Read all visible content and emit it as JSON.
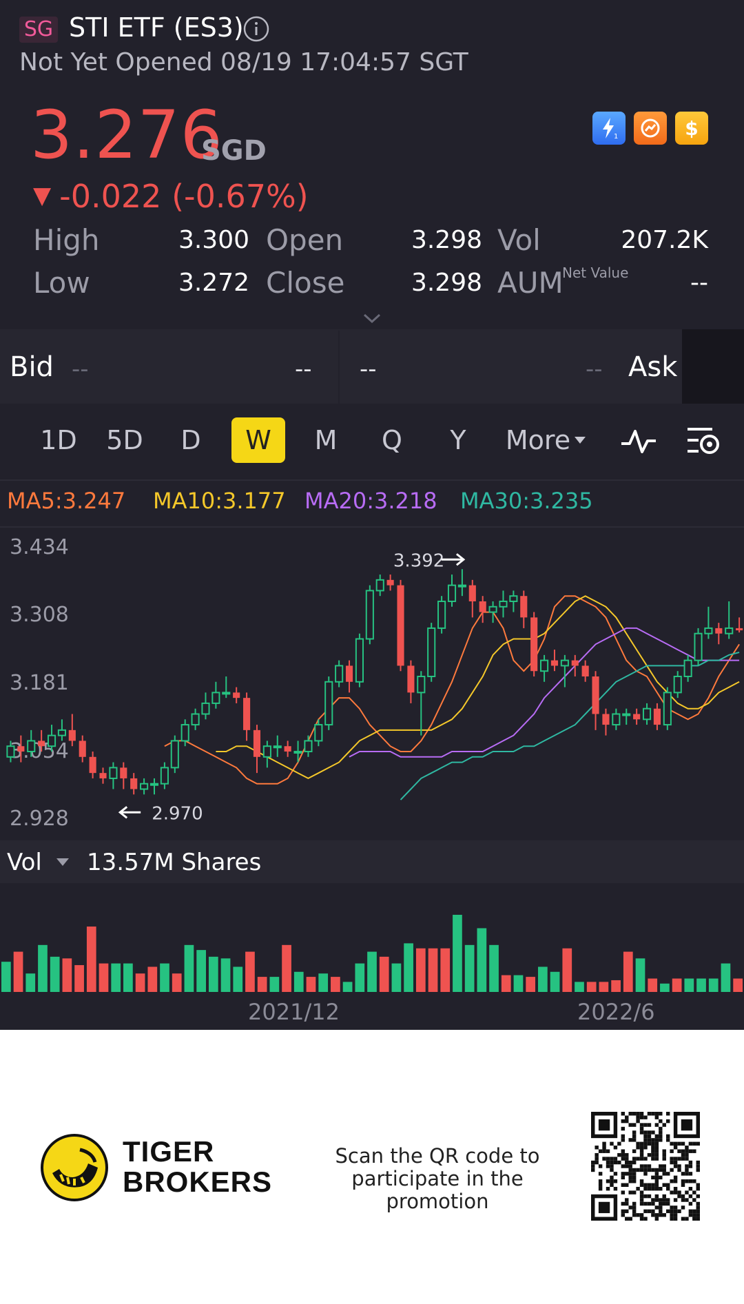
{
  "header": {
    "market_badge": "SG",
    "title": "STI ETF (ES3)",
    "status": "Not Yet Opened 08/19 17:04:57 SGT"
  },
  "quote": {
    "price": "3.276",
    "currency": "SGD",
    "change": "-0.022 (-0.67%)",
    "change_arrow": "▼",
    "color_down": "#ef5350",
    "color_up": "#26c281"
  },
  "stats": {
    "high_label": "High",
    "high": "3.300",
    "low_label": "Low",
    "low": "3.272",
    "open_label": "Open",
    "open": "3.298",
    "close_label": "Close",
    "close": "3.298",
    "vol_label": "Vol",
    "vol": "207.2K",
    "aum_label": "AUM",
    "aum_sup": "Net Value",
    "aum": "--"
  },
  "bidask": {
    "bid_label": "Bid",
    "bid_price": "--",
    "bid_size": "--",
    "ask_price": "--",
    "ask_size": "--",
    "ask_label": "Ask"
  },
  "periods": [
    "1D",
    "5D",
    "D",
    "W",
    "M",
    "Q",
    "Y"
  ],
  "active_period": "W",
  "more_label": "More",
  "ma": {
    "ma5": "MA5:3.247",
    "ma10": "MA10:3.177",
    "ma20": "MA20:3.218",
    "ma30": "MA30:3.235",
    "colors": {
      "ma5": "#ff7a3d",
      "ma10": "#f5c82a",
      "ma20": "#b86cf5",
      "ma30": "#2fb8a2"
    }
  },
  "chart_data": {
    "type": "candlestick",
    "y_ticks": [
      "3.434",
      "3.308",
      "3.181",
      "3.054",
      "2.928"
    ],
    "ylim": [
      2.928,
      3.434
    ],
    "max_annotation": "3.392",
    "min_annotation": "2.970",
    "x_labels": [
      "2021/12",
      "2022/6"
    ],
    "candles": [
      {
        "o": 3.04,
        "c": 3.06,
        "h": 3.07,
        "l": 3.03
      },
      {
        "o": 3.06,
        "c": 3.05,
        "h": 3.08,
        "l": 3.03
      },
      {
        "o": 3.05,
        "c": 3.07,
        "h": 3.09,
        "l": 3.04
      },
      {
        "o": 3.07,
        "c": 3.06,
        "h": 3.09,
        "l": 3.05
      },
      {
        "o": 3.06,
        "c": 3.08,
        "h": 3.1,
        "l": 3.05
      },
      {
        "o": 3.08,
        "c": 3.09,
        "h": 3.11,
        "l": 3.07
      },
      {
        "o": 3.09,
        "c": 3.07,
        "h": 3.12,
        "l": 3.06
      },
      {
        "o": 3.07,
        "c": 3.04,
        "h": 3.08,
        "l": 3.03
      },
      {
        "o": 3.04,
        "c": 3.01,
        "h": 3.05,
        "l": 3.0
      },
      {
        "o": 3.01,
        "c": 3.0,
        "h": 3.02,
        "l": 2.99
      },
      {
        "o": 3.0,
        "c": 3.02,
        "h": 3.03,
        "l": 2.98
      },
      {
        "o": 3.02,
        "c": 3.0,
        "h": 3.03,
        "l": 2.98
      },
      {
        "o": 3.0,
        "c": 2.98,
        "h": 3.01,
        "l": 2.97
      },
      {
        "o": 2.98,
        "c": 2.99,
        "h": 3.0,
        "l": 2.97
      },
      {
        "o": 2.99,
        "c": 2.99,
        "h": 3.0,
        "l": 2.97
      },
      {
        "o": 2.99,
        "c": 3.02,
        "h": 3.03,
        "l": 2.98
      },
      {
        "o": 3.02,
        "c": 3.07,
        "h": 3.08,
        "l": 3.01
      },
      {
        "o": 3.07,
        "c": 3.1,
        "h": 3.11,
        "l": 3.06
      },
      {
        "o": 3.1,
        "c": 3.12,
        "h": 3.13,
        "l": 3.09
      },
      {
        "o": 3.12,
        "c": 3.14,
        "h": 3.16,
        "l": 3.11
      },
      {
        "o": 3.14,
        "c": 3.16,
        "h": 3.18,
        "l": 3.13
      },
      {
        "o": 3.16,
        "c": 3.16,
        "h": 3.19,
        "l": 3.15
      },
      {
        "o": 3.16,
        "c": 3.15,
        "h": 3.17,
        "l": 3.14
      },
      {
        "o": 3.15,
        "c": 3.09,
        "h": 3.16,
        "l": 3.07
      },
      {
        "o": 3.09,
        "c": 3.04,
        "h": 3.1,
        "l": 3.01
      },
      {
        "o": 3.04,
        "c": 3.06,
        "h": 3.07,
        "l": 3.02
      },
      {
        "o": 3.06,
        "c": 3.06,
        "h": 3.08,
        "l": 3.04
      },
      {
        "o": 3.06,
        "c": 3.05,
        "h": 3.07,
        "l": 3.04
      },
      {
        "o": 3.05,
        "c": 3.05,
        "h": 3.07,
        "l": 3.03
      },
      {
        "o": 3.05,
        "c": 3.07,
        "h": 3.08,
        "l": 3.04
      },
      {
        "o": 3.07,
        "c": 3.1,
        "h": 3.11,
        "l": 3.06
      },
      {
        "o": 3.1,
        "c": 3.18,
        "h": 3.19,
        "l": 3.09
      },
      {
        "o": 3.18,
        "c": 3.21,
        "h": 3.22,
        "l": 3.17
      },
      {
        "o": 3.21,
        "c": 3.18,
        "h": 3.22,
        "l": 3.16
      },
      {
        "o": 3.18,
        "c": 3.26,
        "h": 3.27,
        "l": 3.17
      },
      {
        "o": 3.26,
        "c": 3.35,
        "h": 3.36,
        "l": 3.25
      },
      {
        "o": 3.35,
        "c": 3.37,
        "h": 3.38,
        "l": 3.34
      },
      {
        "o": 3.37,
        "c": 3.36,
        "h": 3.38,
        "l": 3.35
      },
      {
        "o": 3.36,
        "c": 3.21,
        "h": 3.37,
        "l": 3.2
      },
      {
        "o": 3.21,
        "c": 3.16,
        "h": 3.22,
        "l": 3.14
      },
      {
        "o": 3.16,
        "c": 3.19,
        "h": 3.2,
        "l": 3.08
      },
      {
        "o": 3.19,
        "c": 3.28,
        "h": 3.29,
        "l": 3.18
      },
      {
        "o": 3.28,
        "c": 3.33,
        "h": 3.34,
        "l": 3.27
      },
      {
        "o": 3.33,
        "c": 3.36,
        "h": 3.38,
        "l": 3.32
      },
      {
        "o": 3.36,
        "c": 3.36,
        "h": 3.39,
        "l": 3.34
      },
      {
        "o": 3.36,
        "c": 3.33,
        "h": 3.37,
        "l": 3.3
      },
      {
        "o": 3.33,
        "c": 3.31,
        "h": 3.34,
        "l": 3.29
      },
      {
        "o": 3.31,
        "c": 3.32,
        "h": 3.33,
        "l": 3.29
      },
      {
        "o": 3.32,
        "c": 3.33,
        "h": 3.35,
        "l": 3.3
      },
      {
        "o": 3.33,
        "c": 3.34,
        "h": 3.35,
        "l": 3.31
      },
      {
        "o": 3.34,
        "c": 3.3,
        "h": 3.35,
        "l": 3.28
      },
      {
        "o": 3.3,
        "c": 3.2,
        "h": 3.31,
        "l": 3.19
      },
      {
        "o": 3.2,
        "c": 3.22,
        "h": 3.23,
        "l": 3.18
      },
      {
        "o": 3.22,
        "c": 3.21,
        "h": 3.24,
        "l": 3.2
      },
      {
        "o": 3.21,
        "c": 3.22,
        "h": 3.23,
        "l": 3.17
      },
      {
        "o": 3.22,
        "c": 3.21,
        "h": 3.23,
        "l": 3.19
      },
      {
        "o": 3.21,
        "c": 3.19,
        "h": 3.22,
        "l": 3.18
      },
      {
        "o": 3.19,
        "c": 3.12,
        "h": 3.2,
        "l": 3.09
      },
      {
        "o": 3.12,
        "c": 3.1,
        "h": 3.13,
        "l": 3.08
      },
      {
        "o": 3.1,
        "c": 3.12,
        "h": 3.13,
        "l": 3.09
      },
      {
        "o": 3.12,
        "c": 3.12,
        "h": 3.13,
        "l": 3.1
      },
      {
        "o": 3.12,
        "c": 3.11,
        "h": 3.13,
        "l": 3.1
      },
      {
        "o": 3.11,
        "c": 3.13,
        "h": 3.14,
        "l": 3.1
      },
      {
        "o": 3.13,
        "c": 3.1,
        "h": 3.14,
        "l": 3.09
      },
      {
        "o": 3.1,
        "c": 3.16,
        "h": 3.17,
        "l": 3.09
      },
      {
        "o": 3.16,
        "c": 3.19,
        "h": 3.2,
        "l": 3.15
      },
      {
        "o": 3.19,
        "c": 3.22,
        "h": 3.23,
        "l": 3.18
      },
      {
        "o": 3.22,
        "c": 3.27,
        "h": 3.28,
        "l": 3.21
      },
      {
        "o": 3.27,
        "c": 3.28,
        "h": 3.32,
        "l": 3.26
      },
      {
        "o": 3.28,
        "c": 3.27,
        "h": 3.29,
        "l": 3.25
      },
      {
        "o": 3.27,
        "c": 3.28,
        "h": 3.33,
        "l": 3.26
      },
      {
        "o": 3.28,
        "c": 3.276,
        "h": 3.3,
        "l": 3.272
      }
    ],
    "ma_lines": {
      "ma5": [
        3.06,
        3.07,
        3.07,
        3.06,
        3.05,
        3.04,
        3.03,
        3.02,
        3.0,
        2.99,
        2.99,
        2.99,
        3.0,
        3.03,
        3.07,
        3.11,
        3.13,
        3.15,
        3.15,
        3.13,
        3.1,
        3.08,
        3.06,
        3.05,
        3.05,
        3.07,
        3.1,
        3.14,
        3.18,
        3.23,
        3.28,
        3.31,
        3.31,
        3.28,
        3.22,
        3.2,
        3.22,
        3.26,
        3.32,
        3.34,
        3.34,
        3.33,
        3.32,
        3.3,
        3.26,
        3.22,
        3.2,
        3.19,
        3.16,
        3.13,
        3.12,
        3.11,
        3.12,
        3.15,
        3.19,
        3.22,
        3.25
      ],
      "ma10": [
        3.05,
        3.05,
        3.06,
        3.06,
        3.05,
        3.04,
        3.03,
        3.02,
        3.01,
        3.0,
        3.01,
        3.02,
        3.03,
        3.05,
        3.07,
        3.08,
        3.09,
        3.09,
        3.09,
        3.09,
        3.09,
        3.09,
        3.1,
        3.11,
        3.13,
        3.16,
        3.19,
        3.23,
        3.25,
        3.26,
        3.26,
        3.26,
        3.27,
        3.29,
        3.31,
        3.33,
        3.34,
        3.33,
        3.32,
        3.3,
        3.27,
        3.24,
        3.21,
        3.18,
        3.16,
        3.14,
        3.13,
        3.13,
        3.14,
        3.16,
        3.17,
        3.18
      ],
      "ma20": [
        3.04,
        3.05,
        3.05,
        3.05,
        3.05,
        3.04,
        3.04,
        3.04,
        3.04,
        3.04,
        3.05,
        3.05,
        3.05,
        3.05,
        3.06,
        3.07,
        3.08,
        3.1,
        3.12,
        3.15,
        3.17,
        3.19,
        3.21,
        3.23,
        3.25,
        3.26,
        3.27,
        3.28,
        3.28,
        3.27,
        3.26,
        3.25,
        3.24,
        3.23,
        3.22,
        3.22,
        3.22,
        3.22,
        3.22
      ],
      "ma30": [
        2.96,
        2.98,
        3.0,
        3.01,
        3.02,
        3.03,
        3.03,
        3.04,
        3.04,
        3.05,
        3.05,
        3.05,
        3.06,
        3.06,
        3.07,
        3.08,
        3.09,
        3.1,
        3.12,
        3.14,
        3.16,
        3.18,
        3.19,
        3.2,
        3.21,
        3.21,
        3.21,
        3.21,
        3.21,
        3.21,
        3.22,
        3.22,
        3.23,
        3.235
      ]
    },
    "grid": false
  },
  "volume": {
    "label": "Vol",
    "value": "13.57M Shares",
    "x_labels": [
      "2021/12",
      "2022/6"
    ],
    "bars": [
      {
        "v": 36,
        "up": true
      },
      {
        "v": 48,
        "up": false
      },
      {
        "v": 22,
        "up": true
      },
      {
        "v": 56,
        "up": true
      },
      {
        "v": 42,
        "up": true
      },
      {
        "v": 40,
        "up": false
      },
      {
        "v": 32,
        "up": false
      },
      {
        "v": 78,
        "up": false
      },
      {
        "v": 34,
        "up": false
      },
      {
        "v": 34,
        "up": true
      },
      {
        "v": 34,
        "up": true
      },
      {
        "v": 22,
        "up": false
      },
      {
        "v": 30,
        "up": false
      },
      {
        "v": 34,
        "up": true
      },
      {
        "v": 22,
        "up": false
      },
      {
        "v": 56,
        "up": true
      },
      {
        "v": 50,
        "up": true
      },
      {
        "v": 42,
        "up": true
      },
      {
        "v": 40,
        "up": true
      },
      {
        "v": 30,
        "up": true
      },
      {
        "v": 48,
        "up": false
      },
      {
        "v": 18,
        "up": false
      },
      {
        "v": 18,
        "up": true
      },
      {
        "v": 56,
        "up": false
      },
      {
        "v": 24,
        "up": true
      },
      {
        "v": 18,
        "up": false
      },
      {
        "v": 22,
        "up": true
      },
      {
        "v": 18,
        "up": false
      },
      {
        "v": 12,
        "up": true
      },
      {
        "v": 34,
        "up": true
      },
      {
        "v": 48,
        "up": true
      },
      {
        "v": 42,
        "up": false
      },
      {
        "v": 34,
        "up": true
      },
      {
        "v": 58,
        "up": true
      },
      {
        "v": 52,
        "up": false
      },
      {
        "v": 52,
        "up": false
      },
      {
        "v": 52,
        "up": false
      },
      {
        "v": 92,
        "up": true
      },
      {
        "v": 56,
        "up": true
      },
      {
        "v": 76,
        "up": true
      },
      {
        "v": 56,
        "up": true
      },
      {
        "v": 20,
        "up": false
      },
      {
        "v": 20,
        "up": true
      },
      {
        "v": 18,
        "up": false
      },
      {
        "v": 30,
        "up": true
      },
      {
        "v": 24,
        "up": true
      },
      {
        "v": 52,
        "up": false
      },
      {
        "v": 12,
        "up": true
      },
      {
        "v": 12,
        "up": false
      },
      {
        "v": 12,
        "up": false
      },
      {
        "v": 14,
        "up": false
      },
      {
        "v": 48,
        "up": false
      },
      {
        "v": 40,
        "up": true
      },
      {
        "v": 16,
        "up": false
      },
      {
        "v": 10,
        "up": true
      },
      {
        "v": 16,
        "up": false
      },
      {
        "v": 16,
        "up": true
      },
      {
        "v": 16,
        "up": true
      },
      {
        "v": 16,
        "up": true
      },
      {
        "v": 34,
        "up": true
      },
      {
        "v": 16,
        "up": false
      }
    ]
  },
  "footer": {
    "brand_line1": "TIGER",
    "brand_line2": "BROKERS",
    "promo_line1": "Scan the QR code to",
    "promo_line2": "participate in the promotion"
  }
}
